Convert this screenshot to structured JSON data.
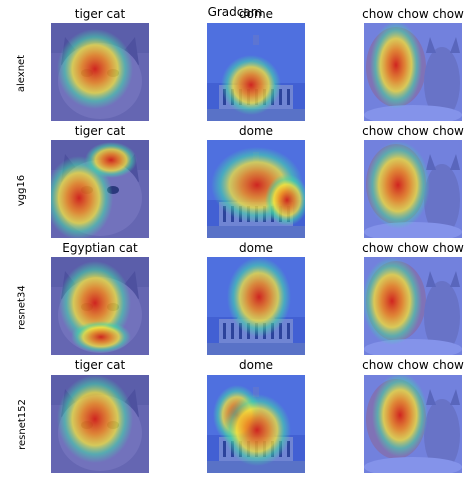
{
  "figure": {
    "title": "Gradcam"
  },
  "rows": [
    {
      "model": "alexnet",
      "titles": [
        "tiger cat",
        "dome",
        "chow chow chow"
      ]
    },
    {
      "model": "vgg16",
      "titles": [
        "tiger cat",
        "dome",
        "chow chow chow"
      ]
    },
    {
      "model": "resnet34",
      "titles": [
        "Egyptian cat",
        "dome",
        "chow chow chow"
      ]
    },
    {
      "model": "resnet152",
      "titles": [
        "tiger cat",
        "dome",
        "chow chow chow"
      ]
    }
  ],
  "images": [
    "cat",
    "dome",
    "dog-and-cat"
  ],
  "colors": {
    "heat_hot": "#d42018",
    "heat_warm": "#f6e63a",
    "heat_cool": "#2e5ef0",
    "heat_mid": "#42d8a8"
  }
}
